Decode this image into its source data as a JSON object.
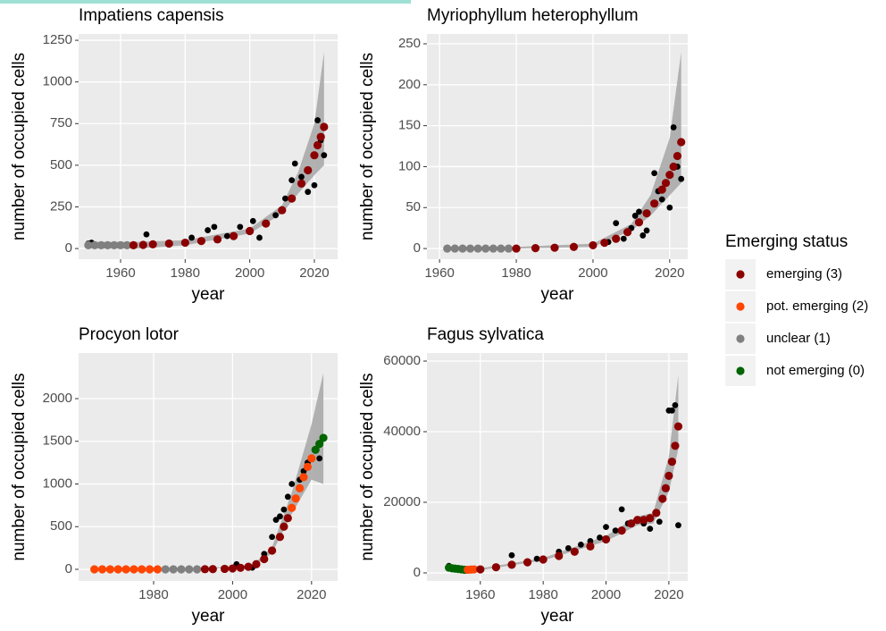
{
  "chart_data": [
    {
      "type": "scatter",
      "title": "Impatiens capensis",
      "x_label": "year",
      "y_label": "number of occupied cells",
      "xlim": [
        1947,
        2027.2
      ],
      "xticks": [
        1960,
        1980,
        2000,
        2020
      ],
      "ylim": [
        -64,
        1288
      ],
      "yticks": [
        0,
        250,
        500,
        750,
        1000,
        1250
      ],
      "grid": true,
      "band": {
        "color": "#a6a6a6",
        "x": [
          1950,
          1965,
          1980,
          2000,
          2010,
          2015,
          2020,
          2023
        ],
        "lower": [
          0,
          0,
          20,
          90,
          210,
          330,
          440,
          500
        ],
        "upper": [
          40,
          40,
          50,
          120,
          260,
          460,
          750,
          1180
        ]
      },
      "points": {
        "color": "#000000",
        "x": [
          1950,
          1951,
          1968,
          1975,
          1980,
          1982,
          1987,
          1989,
          1993,
          1997,
          2001,
          2003,
          2005,
          2008,
          2011,
          2013,
          2014,
          2016,
          2018,
          2020,
          2021,
          2022,
          2023
        ],
        "values": [
          30,
          35,
          85,
          25,
          35,
          65,
          110,
          130,
          75,
          130,
          165,
          65,
          150,
          200,
          300,
          410,
          510,
          430,
          340,
          380,
          770,
          650,
          560
        ]
      },
      "series": [
        {
          "name": "unclear (1)",
          "color": "#808080",
          "x": [
            1950,
            1952,
            1954,
            1956,
            1958,
            1960,
            1962
          ],
          "values": [
            20,
            20,
            20,
            20,
            20,
            20,
            20
          ]
        },
        {
          "name": "emerging (3)",
          "color": "#8b0000",
          "x": [
            1964,
            1967,
            1970,
            1975,
            1980,
            1985,
            1990,
            1995,
            2000,
            2005,
            2010,
            2013,
            2016,
            2018,
            2020,
            2021,
            2022,
            2023
          ],
          "values": [
            20,
            22,
            25,
            30,
            35,
            45,
            55,
            75,
            105,
            150,
            230,
            300,
            390,
            470,
            560,
            620,
            670,
            730
          ]
        }
      ]
    },
    {
      "type": "scatter",
      "title": "Myriophyllum heterophyllum",
      "x_label": "year",
      "y_label": "number of occupied cells",
      "xlim": [
        1956.7,
        2024.7
      ],
      "xticks": [
        1960,
        1980,
        2000,
        2020
      ],
      "ylim": [
        -13,
        262
      ],
      "yticks": [
        0,
        50,
        100,
        150,
        200,
        250
      ],
      "grid": true,
      "band": {
        "color": "#a6a6a6",
        "x": [
          1962,
          1980,
          2000,
          2010,
          2015,
          2020,
          2023
        ],
        "lower": [
          0,
          0,
          2,
          22,
          40,
          65,
          80
        ],
        "upper": [
          2,
          2,
          6,
          30,
          65,
          135,
          240
        ]
      },
      "points": {
        "color": "#000000",
        "x": [
          1995,
          2000,
          2004,
          2006,
          2008,
          2010,
          2011,
          2012,
          2013,
          2014,
          2016,
          2017,
          2018,
          2020,
          2021,
          2022,
          2023
        ],
        "values": [
          3,
          4,
          8,
          31,
          12,
          25,
          40,
          45,
          16,
          22,
          92,
          70,
          60,
          50,
          148,
          100,
          85
        ]
      },
      "series": [
        {
          "name": "unclear (1)",
          "color": "#808080",
          "x": [
            1962,
            1964,
            1966,
            1968,
            1970,
            1972,
            1974,
            1976,
            1978
          ],
          "values": [
            0,
            0,
            0,
            0,
            0,
            0,
            0,
            0,
            0
          ]
        },
        {
          "name": "emerging (3)",
          "color": "#8b0000",
          "x": [
            1980,
            1985,
            1990,
            1995,
            2000,
            2003,
            2006,
            2009,
            2012,
            2014,
            2016,
            2018,
            2019,
            2020,
            2021,
            2022,
            2023
          ],
          "values": [
            0,
            0.5,
            1,
            2,
            4,
            7,
            12,
            20,
            32,
            43,
            55,
            72,
            80,
            90,
            100,
            113,
            130
          ]
        }
      ]
    },
    {
      "type": "scatter",
      "title": "Procyon lotor",
      "x_label": "year",
      "y_label": "number of occupied cells",
      "xlim": [
        1961,
        2026.6
      ],
      "xticks": [
        1980,
        2000,
        2020
      ],
      "ylim": [
        -136,
        2534
      ],
      "yticks": [
        0,
        500,
        1000,
        1500,
        2000
      ],
      "grid": true,
      "band": {
        "color": "#a6a6a6",
        "x": [
          1965,
          1990,
          2005,
          2010,
          2015,
          2020,
          2023
        ],
        "lower": [
          0,
          0,
          30,
          190,
          650,
          1050,
          1000
        ],
        "upper": [
          5,
          5,
          50,
          260,
          900,
          1700,
          2300
        ]
      },
      "points": {
        "color": "#000000",
        "x": [
          2001,
          2005,
          2008,
          2010,
          2011,
          2012,
          2013,
          2014,
          2015,
          2017,
          2018,
          2019,
          2020,
          2021,
          2022,
          2023
        ],
        "values": [
          60,
          20,
          180,
          380,
          580,
          620,
          700,
          850,
          1000,
          1050,
          1150,
          1250,
          1300,
          1400,
          1300,
          1550
        ]
      },
      "series": [
        {
          "name": "pot. emerging (2)",
          "color": "#ff4500",
          "x": [
            1965,
            1967,
            1969,
            1971,
            1973,
            1975,
            1977,
            1979,
            1981,
            2015,
            2016,
            2017,
            2018,
            2019,
            2020
          ],
          "values": [
            0,
            0,
            0,
            0,
            0,
            0,
            0,
            0,
            0,
            720,
            830,
            950,
            1080,
            1200,
            1300
          ]
        },
        {
          "name": "unclear (1)",
          "color": "#808080",
          "x": [
            1983,
            1985,
            1987,
            1989,
            1991
          ],
          "values": [
            0,
            0,
            0,
            0,
            0
          ]
        },
        {
          "name": "emerging (3)",
          "color": "#8b0000",
          "x": [
            1993,
            1995,
            1998,
            2000,
            2002,
            2004,
            2006,
            2008,
            2010,
            2012,
            2013,
            2014
          ],
          "values": [
            2,
            3,
            6,
            10,
            18,
            30,
            60,
            120,
            220,
            380,
            500,
            600
          ]
        },
        {
          "name": "not emerging (0)",
          "color": "#006400",
          "x": [
            2021,
            2022,
            2023
          ],
          "values": [
            1400,
            1470,
            1540
          ]
        }
      ]
    },
    {
      "type": "scatter",
      "title": "Fagus sylvatica",
      "x_label": "year",
      "y_label": "number of occupied cells",
      "xlim": [
        1943,
        2026
      ],
      "xticks": [
        1960,
        1980,
        2000,
        2020
      ],
      "ylim": [
        -2280,
        62280
      ],
      "yticks": [
        0,
        20000,
        40000,
        60000
      ],
      "grid": true,
      "band": {
        "color": "#a6a6a6",
        "x": [
          1950,
          1960,
          1980,
          2000,
          2010,
          2015,
          2020,
          2023
        ],
        "lower": [
          800,
          800,
          3500,
          9000,
          13500,
          14000,
          23000,
          35000
        ],
        "upper": [
          1800,
          1300,
          4200,
          10500,
          16000,
          17000,
          33000,
          56000
        ]
      },
      "points": {
        "color": "#000000",
        "x": [
          1950,
          1970,
          1978,
          1985,
          1988,
          1992,
          1995,
          1998,
          2000,
          2003,
          2005,
          2007,
          2012,
          2014,
          2017,
          2020,
          2021,
          2022,
          2023
        ],
        "values": [
          2000,
          5000,
          4000,
          6000,
          7000,
          8000,
          9000,
          10000,
          13000,
          12000,
          18000,
          14000,
          14000,
          12500,
          14500,
          46000,
          46000,
          47500,
          13500
        ]
      },
      "series": [
        {
          "name": "not emerging (0)",
          "color": "#006400",
          "x": [
            1950,
            1951,
            1952,
            1953,
            1954,
            1955
          ],
          "values": [
            1500,
            1300,
            1200,
            1100,
            1000,
            900
          ]
        },
        {
          "name": "pot. emerging (2)",
          "color": "#ff4500",
          "x": [
            1956,
            1957,
            1958
          ],
          "values": [
            900,
            950,
            1000
          ]
        },
        {
          "name": "emerging (3)",
          "color": "#8b0000",
          "x": [
            1960,
            1965,
            1970,
            1975,
            1980,
            1985,
            1990,
            1995,
            2000,
            2005,
            2008,
            2010,
            2012,
            2014,
            2016,
            2018,
            2019,
            2020,
            2021,
            2022,
            2023
          ],
          "values": [
            1000,
            1600,
            2300,
            3000,
            3800,
            4800,
            6000,
            7500,
            9500,
            12000,
            14000,
            15000,
            15000,
            15500,
            17000,
            21000,
            24000,
            27500,
            31500,
            36000,
            41500
          ]
        }
      ]
    }
  ],
  "legend": {
    "title": "Emerging status",
    "items": [
      {
        "name": "emerging (3)",
        "color": "#8b0000"
      },
      {
        "name": "pot. emerging (2)",
        "color": "#ff4500"
      },
      {
        "name": "unclear (1)",
        "color": "#808080"
      },
      {
        "name": "not emerging (0)",
        "color": "#006400"
      }
    ]
  }
}
